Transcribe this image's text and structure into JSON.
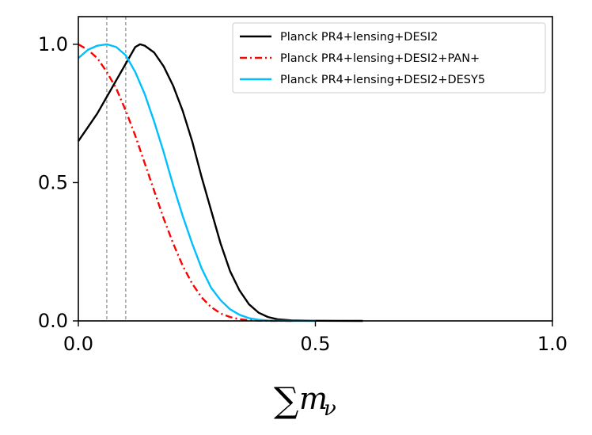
{
  "chart_data": {
    "type": "line",
    "title": "",
    "xlabel": {
      "symbol": "∑",
      "variable": "m",
      "subscript": "ν"
    },
    "ylabel": "",
    "xlim": [
      0.0,
      1.0
    ],
    "ylim": [
      0.0,
      1.1
    ],
    "xticks": [
      0.0,
      0.5,
      1.0
    ],
    "xtick_labels": [
      "0.0",
      "0.5",
      "1.0"
    ],
    "yticks": [
      0.0,
      0.5,
      1.0
    ],
    "ytick_labels": [
      "0.0",
      "0.5",
      "1.0"
    ],
    "legend_position": "top-right",
    "vertical_lines": [
      {
        "x": 0.06,
        "style": "dashed",
        "color": "#808080"
      },
      {
        "x": 0.1,
        "style": "dashed",
        "color": "#808080"
      }
    ],
    "series": [
      {
        "name": "Planck PR4+lensing+DESI2",
        "color": "#000000",
        "style": "solid",
        "x": [
          0.0,
          0.02,
          0.04,
          0.06,
          0.08,
          0.1,
          0.12,
          0.13,
          0.14,
          0.16,
          0.18,
          0.2,
          0.22,
          0.24,
          0.26,
          0.28,
          0.3,
          0.32,
          0.34,
          0.36,
          0.38,
          0.4,
          0.42,
          0.45,
          0.5,
          0.55,
          0.6
        ],
        "values": [
          0.65,
          0.7,
          0.75,
          0.81,
          0.87,
          0.93,
          0.99,
          1.0,
          0.995,
          0.97,
          0.92,
          0.85,
          0.76,
          0.65,
          0.52,
          0.4,
          0.28,
          0.18,
          0.11,
          0.06,
          0.03,
          0.014,
          0.006,
          0.002,
          0.0005,
          0.0001,
          0.0
        ]
      },
      {
        "name": "Planck PR4+lensing+DESI2+PAN+",
        "color": "#ff0000",
        "style": "dashdot",
        "x": [
          0.0,
          0.02,
          0.04,
          0.06,
          0.08,
          0.1,
          0.12,
          0.14,
          0.16,
          0.18,
          0.2,
          0.22,
          0.24,
          0.26,
          0.28,
          0.3,
          0.32,
          0.34,
          0.36,
          0.38,
          0.4,
          0.42,
          0.45
        ],
        "values": [
          1.0,
          0.98,
          0.95,
          0.9,
          0.84,
          0.76,
          0.67,
          0.57,
          0.47,
          0.37,
          0.28,
          0.2,
          0.135,
          0.085,
          0.05,
          0.027,
          0.014,
          0.006,
          0.0025,
          0.001,
          0.0004,
          0.0001,
          0.0
        ]
      },
      {
        "name": "Planck PR4+lensing+DESI2+DESY5",
        "color": "#00bfff",
        "style": "solid",
        "x": [
          0.0,
          0.02,
          0.04,
          0.06,
          0.08,
          0.1,
          0.12,
          0.14,
          0.16,
          0.18,
          0.2,
          0.22,
          0.24,
          0.26,
          0.28,
          0.3,
          0.32,
          0.34,
          0.36,
          0.38,
          0.4,
          0.42,
          0.45,
          0.5
        ],
        "values": [
          0.95,
          0.98,
          0.995,
          1.0,
          0.99,
          0.96,
          0.9,
          0.82,
          0.72,
          0.61,
          0.49,
          0.38,
          0.28,
          0.19,
          0.12,
          0.075,
          0.042,
          0.022,
          0.01,
          0.004,
          0.0015,
          0.0005,
          0.0001,
          0.0
        ]
      }
    ]
  }
}
